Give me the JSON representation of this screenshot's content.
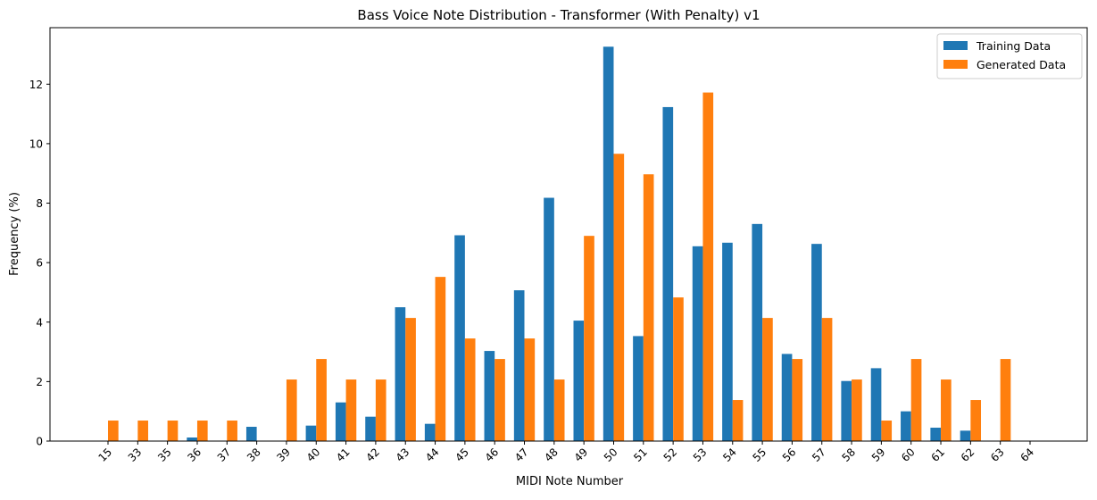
{
  "chart_data": {
    "type": "bar",
    "title": "Bass Voice Note Distribution - Transformer (With Penalty) v1",
    "xlabel": "MIDI Note Number",
    "ylabel": "Frequency (%)",
    "ylim": [
      0,
      13.9
    ],
    "yticks": [
      0,
      2,
      4,
      6,
      8,
      10,
      12
    ],
    "grid": false,
    "legend_position": "top-right",
    "categories": [
      "15",
      "33",
      "35",
      "36",
      "37",
      "38",
      "39",
      "40",
      "41",
      "42",
      "43",
      "44",
      "45",
      "46",
      "47",
      "48",
      "49",
      "50",
      "51",
      "52",
      "53",
      "54",
      "55",
      "56",
      "57",
      "58",
      "59",
      "60",
      "61",
      "62",
      "63",
      "64"
    ],
    "series": [
      {
        "name": "Training Data",
        "color": "#1f77b4",
        "values": [
          0,
          0,
          0,
          0.12,
          0,
          0.48,
          0,
          0.52,
          1.3,
          0.82,
          4.5,
          0.58,
          6.92,
          3.03,
          5.07,
          8.18,
          4.05,
          13.26,
          3.53,
          11.23,
          6.55,
          6.67,
          7.3,
          2.93,
          6.63,
          2.02,
          2.45,
          1.0,
          0.45,
          0.35,
          0,
          0
        ]
      },
      {
        "name": "Generated Data",
        "color": "#ff7f0e",
        "values": [
          0.69,
          0.69,
          0.69,
          0.69,
          0.69,
          0,
          2.07,
          2.76,
          2.07,
          2.07,
          4.14,
          5.52,
          3.45,
          2.76,
          3.45,
          2.07,
          6.9,
          9.66,
          8.97,
          4.83,
          11.72,
          1.38,
          4.14,
          2.76,
          4.14,
          2.07,
          0.69,
          2.76,
          2.07,
          1.38,
          2.76,
          0
        ]
      }
    ]
  }
}
